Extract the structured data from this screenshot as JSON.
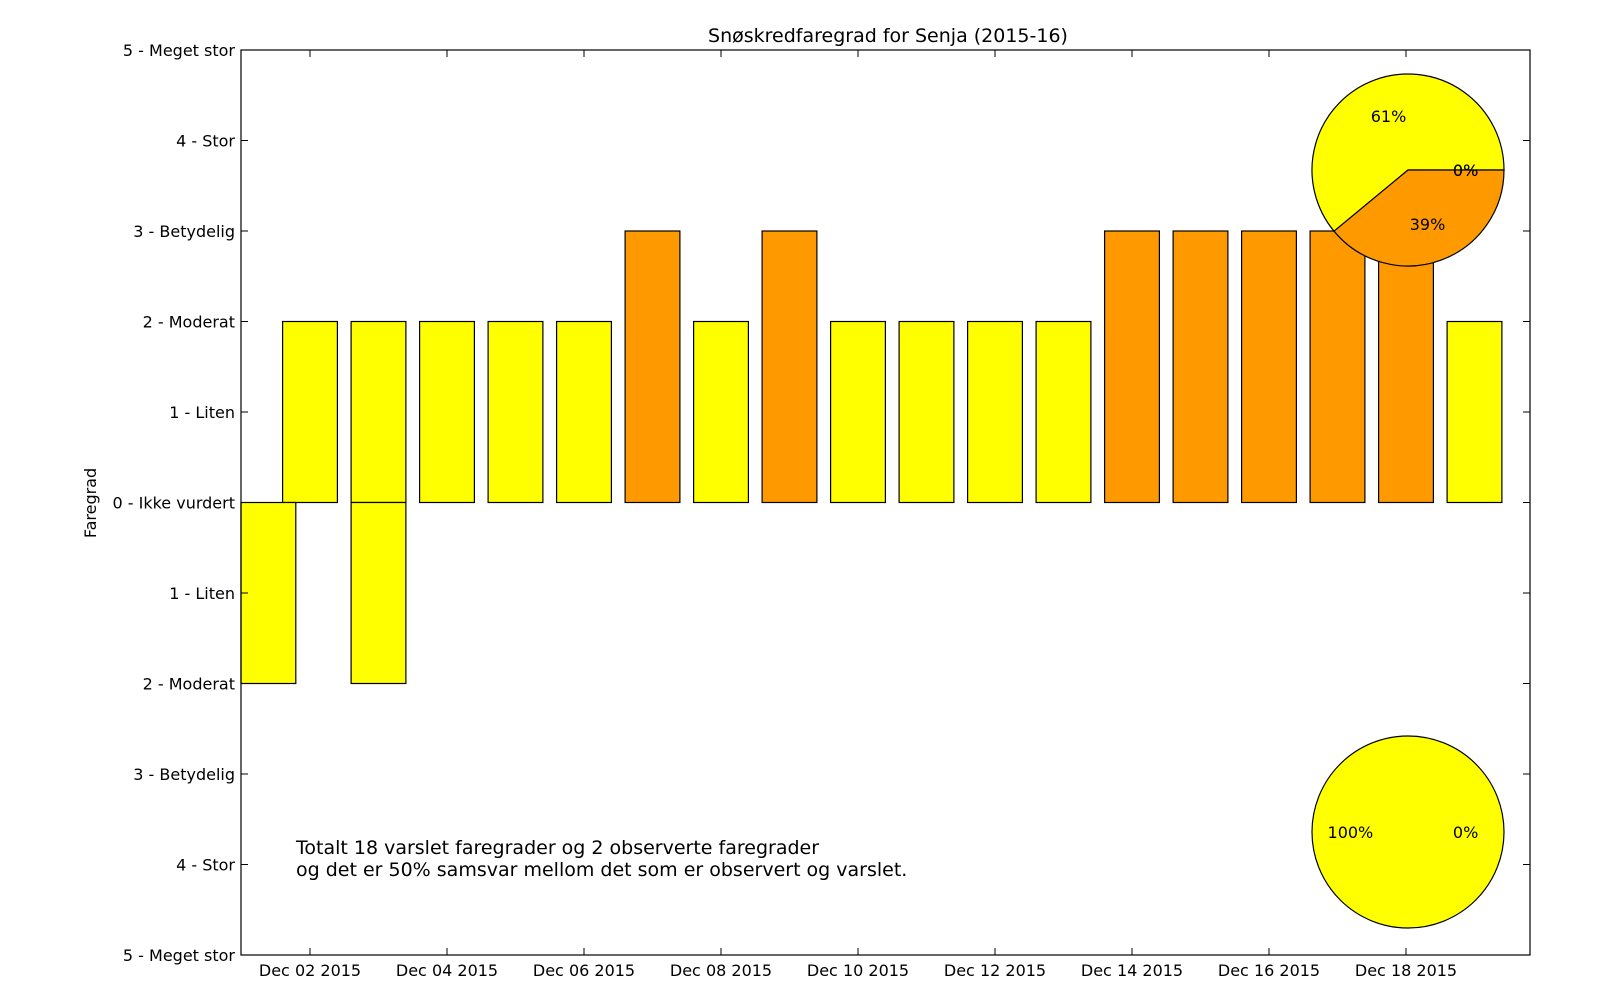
{
  "chart_data": {
    "type": "bar",
    "title": "Snøskredfaregrad for Senja (2015-16)",
    "ylabel": "Faregrad",
    "xlabel": "",
    "ylim": [
      -5,
      5
    ],
    "y_ticks": [
      {
        "value": 5,
        "label": "5 - Meget stor"
      },
      {
        "value": 4,
        "label": "4 - Stor"
      },
      {
        "value": 3,
        "label": "3 - Betydelig"
      },
      {
        "value": 2,
        "label": "2 - Moderat"
      },
      {
        "value": 1,
        "label": "1 - Liten"
      },
      {
        "value": 0,
        "label": "0 - Ikke vurdert"
      },
      {
        "value": -1,
        "label": "1 - Liten"
      },
      {
        "value": -2,
        "label": "2 - Moderat"
      },
      {
        "value": -3,
        "label": "3 - Betydelig"
      },
      {
        "value": -4,
        "label": "4 - Stor"
      },
      {
        "value": -5,
        "label": "5 - Meget stor"
      }
    ],
    "x_ticks": [
      "Dec 02 2015",
      "Dec 04 2015",
      "Dec 06 2015",
      "Dec 08 2015",
      "Dec 10 2015",
      "Dec 12 2015",
      "Dec 14 2015",
      "Dec 16 2015",
      "Dec 18 2015"
    ],
    "forecast": {
      "dates": [
        "2015-12-02",
        "2015-12-03",
        "2015-12-04",
        "2015-12-05",
        "2015-12-06",
        "2015-12-07",
        "2015-12-08",
        "2015-12-09",
        "2015-12-10",
        "2015-12-11",
        "2015-12-12",
        "2015-12-13",
        "2015-12-14",
        "2015-12-15",
        "2015-12-16",
        "2015-12-17",
        "2015-12-18",
        "2015-12-19"
      ],
      "values": [
        2,
        2,
        2,
        2,
        2,
        3,
        2,
        3,
        2,
        2,
        2,
        2,
        3,
        3,
        3,
        3,
        3,
        2
      ]
    },
    "observed": {
      "dates": [
        "2015-12-01",
        "2015-12-03"
      ],
      "values": [
        2,
        2
      ]
    },
    "level_colors": {
      "2": "#FFFF00",
      "3": "#FF9900"
    },
    "pie_forecast": {
      "slices": [
        {
          "label": "61%",
          "value": 61,
          "color": "#FFFF00"
        },
        {
          "label": "39%",
          "value": 39,
          "color": "#FF9900"
        },
        {
          "label": "0%",
          "value": 0,
          "color": "#FF0000"
        },
        {
          "label": "0%",
          "value": 0,
          "color": "#CC0000"
        }
      ]
    },
    "pie_observed": {
      "slices": [
        {
          "label": "100%",
          "value": 100,
          "color": "#FFFF00"
        },
        {
          "label": "0%",
          "value": 0,
          "color": "#FF9900"
        }
      ]
    },
    "summary_lines": [
      "Totalt 18 varslet faregrader og 2 observerte faregrader",
      "og det er 50% samsvar mellom det som er observert og varslet."
    ]
  }
}
